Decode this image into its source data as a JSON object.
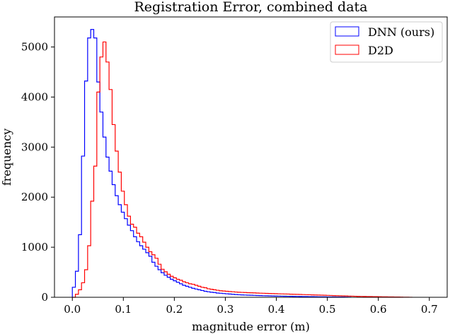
{
  "chart_data": {
    "type": "histogram",
    "title": "Registration Error, combined data",
    "xlabel": "magnitude error (m)",
    "ylabel": "frequency",
    "xlim": [
      -0.035,
      0.735
    ],
    "ylim": [
      0,
      5600
    ],
    "xticks": [
      0.0,
      0.1,
      0.2,
      0.3,
      0.4,
      0.5,
      0.6,
      0.7
    ],
    "xtick_labels": [
      "0.0",
      "0.1",
      "0.2",
      "0.3",
      "0.4",
      "0.5",
      "0.6",
      "0.7"
    ],
    "yticks": [
      0,
      1000,
      2000,
      3000,
      4000,
      5000
    ],
    "ytick_labels": [
      "0",
      "1000",
      "2000",
      "3000",
      "4000",
      "5000"
    ],
    "grid": false,
    "legend_position": "top-right",
    "series": [
      {
        "name": "DNN (ours)",
        "color": "#0000ff",
        "bin_start": 0.0,
        "bin_width": 0.006,
        "values": [
          200,
          520,
          1250,
          2820,
          4320,
          5180,
          5350,
          5180,
          4300,
          3700,
          3200,
          2800,
          2520,
          2250,
          2030,
          1850,
          1700,
          1570,
          1440,
          1330,
          1210,
          1110,
          1030,
          960,
          890,
          820,
          700,
          620,
          550,
          490,
          440,
          400,
          360,
          330,
          300,
          270,
          240,
          220,
          200,
          180,
          165,
          150,
          135,
          120,
          110,
          100,
          95,
          85,
          80,
          75,
          70,
          65,
          60,
          55,
          50,
          48,
          45,
          42,
          40,
          38,
          35,
          33,
          31,
          30,
          28,
          26,
          25,
          24,
          22,
          21,
          20,
          19,
          18,
          17,
          16,
          15,
          14,
          13,
          12,
          11,
          10,
          10,
          9,
          8,
          8,
          7,
          6,
          5,
          5,
          4,
          3
        ]
      },
      {
        "name": "D2D",
        "color": "#ff0000",
        "bin_start": 0.0,
        "bin_width": 0.006,
        "values": [
          0,
          60,
          150,
          290,
          550,
          1030,
          1920,
          2620,
          4100,
          4800,
          5100,
          4700,
          4150,
          3450,
          2920,
          2500,
          2120,
          1850,
          1620,
          1460,
          1400,
          1280,
          1210,
          1100,
          1000,
          910,
          850,
          780,
          660,
          560,
          510,
          460,
          420,
          390,
          360,
          340,
          310,
          290,
          270,
          260,
          240,
          220,
          200,
          190,
          170,
          160,
          150,
          140,
          130,
          125,
          120,
          115,
          110,
          105,
          100,
          98,
          95,
          92,
          90,
          88,
          85,
          82,
          80,
          78,
          76,
          74,
          72,
          70,
          68,
          66,
          64,
          62,
          60,
          58,
          56,
          54,
          52,
          50,
          48,
          46,
          44,
          42,
          40,
          38,
          36,
          34,
          32,
          30,
          28,
          26,
          24,
          22,
          20,
          18,
          17,
          16,
          15,
          14,
          13,
          12,
          11,
          10,
          9,
          8,
          7,
          6,
          5,
          4,
          3,
          2,
          1
        ]
      }
    ]
  }
}
